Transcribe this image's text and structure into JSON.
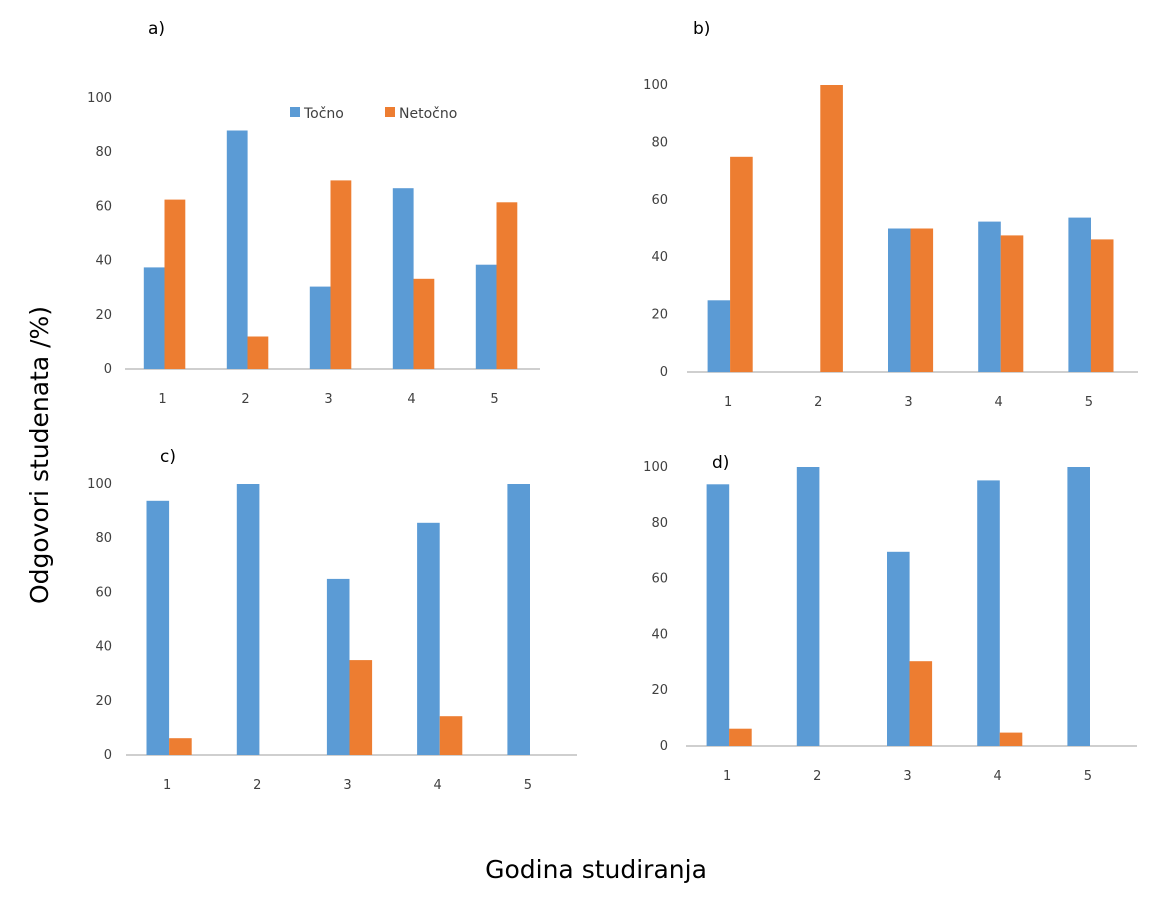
{
  "figure": {
    "ylabel": "Odgovori  studenata /%)",
    "xlabel": "Godina studiranja"
  },
  "legend": {
    "placement": "top-center of panel a",
    "items": [
      {
        "label": "Točno",
        "color": "#5b9bd5"
      },
      {
        "label": "Netočno",
        "color": "#ed7d31"
      }
    ]
  },
  "chart_data": [
    {
      "type": "bar",
      "panel": "a)",
      "categories": [
        "1",
        "2",
        "3",
        "4",
        "5"
      ],
      "ylim": [
        0,
        100
      ],
      "yticks": [
        "0",
        "20",
        "40",
        "60",
        "80",
        "100"
      ],
      "series": [
        {
          "name": "Točno",
          "color": "#5b9bd5",
          "values": [
            37.5,
            88,
            30.4,
            66.7,
            38.5
          ]
        },
        {
          "name": "Netočno",
          "color": "#ed7d31",
          "values": [
            62.5,
            12,
            69.6,
            33.3,
            61.5
          ]
        }
      ]
    },
    {
      "type": "bar",
      "panel": "b)",
      "categories": [
        "1",
        "2",
        "3",
        "4",
        "5"
      ],
      "ylim": [
        0,
        100
      ],
      "yticks": [
        "0",
        "20",
        "40",
        "60",
        "80",
        "100"
      ],
      "series": [
        {
          "name": "Točno",
          "color": "#5b9bd5",
          "values": [
            25,
            0,
            50,
            52.4,
            53.8
          ]
        },
        {
          "name": "Netočno",
          "color": "#ed7d31",
          "values": [
            75,
            100,
            50,
            47.6,
            46.2
          ]
        }
      ]
    },
    {
      "type": "bar",
      "panel": "c)",
      "categories": [
        "1",
        "2",
        "3",
        "4",
        "5"
      ],
      "ylim": [
        0,
        100
      ],
      "yticks": [
        "0",
        "20",
        "40",
        "60",
        "80",
        "100"
      ],
      "series": [
        {
          "name": "Točno",
          "color": "#5b9bd5",
          "values": [
            93.8,
            100,
            65,
            85.7,
            100
          ]
        },
        {
          "name": "Netočno",
          "color": "#ed7d31",
          "values": [
            6.2,
            0,
            35,
            14.3,
            0
          ]
        }
      ]
    },
    {
      "type": "bar",
      "panel": "d)",
      "categories": [
        "1",
        "2",
        "3",
        "4",
        "5"
      ],
      "ylim": [
        0,
        100
      ],
      "yticks": [
        "0",
        "20",
        "40",
        "60",
        "80",
        "100"
      ],
      "series": [
        {
          "name": "Točno",
          "color": "#5b9bd5",
          "values": [
            93.8,
            100,
            69.6,
            95.2,
            100
          ]
        },
        {
          "name": "Netočno",
          "color": "#ed7d31",
          "values": [
            6.2,
            0,
            30.4,
            4.8,
            0
          ]
        }
      ]
    }
  ]
}
